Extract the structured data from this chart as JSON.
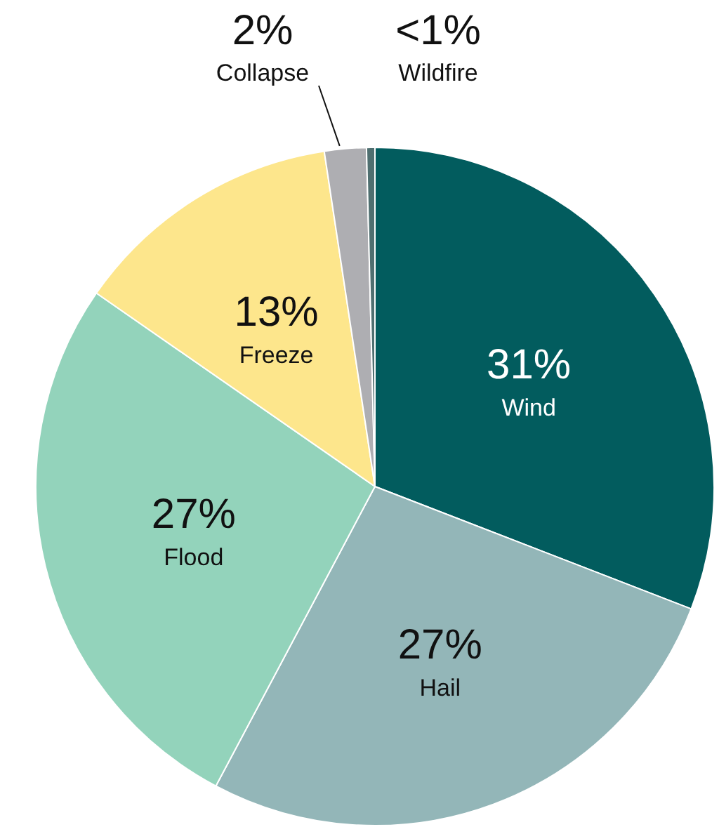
{
  "chart_data": {
    "type": "pie",
    "categories": [
      "Wind",
      "Hail",
      "Flood",
      "Freeze",
      "Collapse",
      "Wildfire"
    ],
    "values": [
      31,
      27,
      27,
      13,
      2,
      0.4
    ],
    "colors": [
      "#025c5e",
      "#93b6b8",
      "#93d3bb",
      "#fde68c",
      "#aeaeb2",
      "#4f6f70"
    ],
    "value_labels": [
      "31%",
      "27%",
      "27%",
      "13%",
      "2%",
      "<1%"
    ],
    "legend": false
  }
}
